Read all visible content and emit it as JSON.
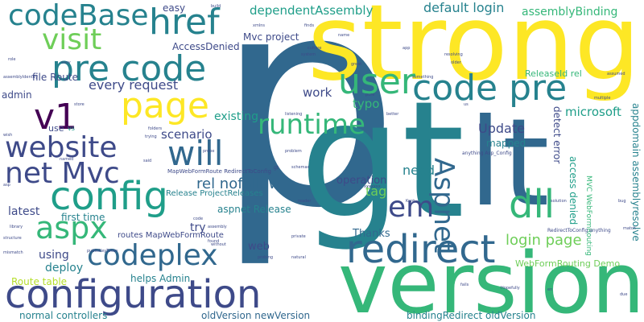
{
  "palette": {
    "purple": "#440154",
    "indigo": "#3e4a89",
    "blue": "#31688e",
    "teal": "#26828e",
    "green": "#1f9e89",
    "mint": "#35b779",
    "lime": "#6ece58",
    "yellowgreen": "#b5de2b",
    "yellow": "#fde725"
  },
  "words": {
    "p": "p",
    "gt": "gt",
    "lt": "lt",
    "strong": "strong",
    "version": "version",
    "configuration": "configuration",
    "config": "config",
    "redirect": "redirect",
    "page": "page",
    "codeBase": "codeBase",
    "href": "href",
    "pre_code": "pre code",
    "code_pre": "code pre",
    "user": "user",
    "visit": "visit",
    "website": "website",
    "net_mvc": "net Mvc",
    "aspx": "aspx",
    "codeplex": "codeplex",
    "will": "will",
    "v1": "v1",
    "runtime": "runtime",
    "dll": "dll",
    "em": "em",
    "aspnet": "Aspnet",
    "dependentAssembly": "dependentAssembly",
    "default_login": "default login",
    "assemblyBinding": "assemblyBinding",
    "every_request": "every request",
    "microsoft": "microsoft",
    "login_page": "login page",
    "rel_nofollow": "rel nofollow",
    "update": "Update",
    "scenario": "scenario",
    "need": "need",
    "tag": "tag",
    "work": "work",
    "typo": "typo",
    "existing": "existing",
    "operation": "operation",
    "thanks": "Thanks",
    "latest": "latest",
    "using": "using",
    "deploy": "deploy",
    "try": "try",
    "web": "web",
    "first_time": "first time",
    "route_table": "Route table",
    "file_route": "file Route",
    "admin": "admin",
    "accessdenied": "AccessDenied",
    "mvc_project": "Mvc project",
    "easy": "easy",
    "aspnet_release": "aspnet Release",
    "helps_admin": "helps Admin",
    "normal_controllers": "normal controllers",
    "oldversion_newversion": "oldVersion newVersion",
    "bindingredirect_oldversion": "bindingRedirect oldVersion",
    "webformrouting_demo": "WebFormRouting Demo",
    "appdomain_assemblyresolve": "appdomain assemblyresolve",
    "access_denied": "access denied",
    "detect_error": "detect error",
    "mapped": "mapped",
    "releaseid_rel": "ReleaseId rel",
    "release_projectreleases": "Release ProjectReleases",
    "routes_mapwebformroute": "routes MapWebFormRoute",
    "mapwebformroute_redirecttoconfig": "MapWebFormRoute RedirectToConfig",
    "mvc_webformrouting": "MVC WebFormRouting",
    "redirecttoconfig_anything": "RedirectToConfig anything",
    "anything_asp_config": "anything Asp_Config",
    "use": "use",
    "vs": "vs",
    "app": "app",
    "build": "build",
    "xmlns": "xmlns",
    "finds": "finds",
    "culture": "culture",
    "system": "system",
    "name": "name",
    "resolving": "resolving",
    "older": "older",
    "something": "something",
    "great": "great",
    "assumed": "assumed",
    "multiple": "multiple",
    "pure": "pure",
    "us": "us",
    "kent": "Kent",
    "solution": "solution",
    "xxxxxxx": "xxxxxxx",
    "hopefully": "Hopefully",
    "folders": "folders",
    "trying": "trying",
    "said": "said",
    "probe": "probe",
    "schemas": "schemas",
    "problem": "problem",
    "reader": "reader",
    "private": "private",
    "natural": "natural",
    "probing": "probing",
    "fails": "fails",
    "match": "match",
    "due": "due",
    "library": "library",
    "structure": "structure",
    "mismatch": "mismatch",
    "publickeytoken": "publicKeyToken",
    "assemblyidentity": "assemblyIdentity",
    "store": "store",
    "named": "named",
    "code": "code",
    "found": "found",
    "without": "without",
    "assembly": "assembly",
    "listening": "listening",
    "better": "better",
    "gt2": "gt",
    "en": "en",
    "bug": "bug",
    "asp": "asp",
    "easy2": "easy",
    "role": "role",
    "wish": "wish"
  }
}
